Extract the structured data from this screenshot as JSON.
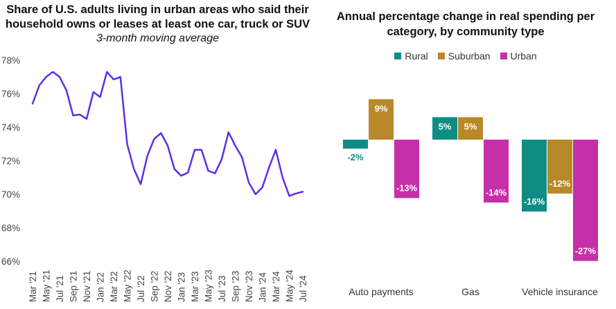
{
  "chart_data": [
    {
      "type": "line",
      "title_line1": "Share of U.S. adults living in urban areas who said their",
      "title_line2": "household owns or leases at least one car, truck or SUV",
      "subtitle": "3-month moving average",
      "xlabel": "",
      "ylabel": "",
      "ylim": [
        66,
        78
      ],
      "yticks": [
        "78%",
        "76%",
        "74%",
        "72%",
        "70%",
        "68%",
        "66%"
      ],
      "ytick_values": [
        78,
        76,
        74,
        72,
        70,
        68,
        66
      ],
      "xticks": [
        "Mar '21",
        "May '21",
        "Jul '21",
        "Sep '21",
        "Nov '21",
        "Jan '22",
        "Mar '22",
        "May '22",
        "Jul '22",
        "Sep '22",
        "Nov '22",
        "Jan '23",
        "Mar '23",
        "May '23",
        "Jul '23",
        "Sep '23",
        "Nov '23",
        "Jan '24",
        "Mar '24",
        "May '24",
        "Jul '24"
      ],
      "x": [
        "Mar '21",
        "Apr '21",
        "May '21",
        "Jun '21",
        "Jul '21",
        "Aug '21",
        "Sep '21",
        "Oct '21",
        "Nov '21",
        "Dec '21",
        "Jan '22",
        "Feb '22",
        "Mar '22",
        "Apr '22",
        "May '22",
        "Jun '22",
        "Jul '22",
        "Aug '22",
        "Sep '22",
        "Oct '22",
        "Nov '22",
        "Dec '22",
        "Jan '23",
        "Feb '23",
        "Mar '23",
        "Apr '23",
        "May '23",
        "Jun '23",
        "Jul '23",
        "Aug '23",
        "Sep '23",
        "Oct '23",
        "Nov '23",
        "Dec '23",
        "Jan '24",
        "Feb '24",
        "Mar '24",
        "Apr '24",
        "May '24",
        "Jun '24",
        "Jul '24"
      ],
      "series": [
        {
          "values": [
            75.4,
            76.5,
            77.0,
            77.3,
            77.0,
            76.2,
            74.7,
            74.75,
            74.5,
            76.1,
            75.8,
            77.3,
            76.85,
            77.0,
            73.0,
            71.5,
            70.6,
            72.3,
            73.3,
            73.65,
            72.9,
            71.5,
            71.1,
            71.3,
            72.65,
            72.65,
            71.4,
            71.25,
            72.1,
            73.7,
            72.9,
            72.2,
            70.7,
            70.0,
            70.4,
            71.6,
            72.65,
            71.0,
            69.9,
            70.05,
            70.15
          ],
          "color": "#5b2ee6"
        }
      ]
    },
    {
      "type": "bar",
      "title_line1": "Annual percentage change in real spending per",
      "title_line2": "category, by community type",
      "categories": [
        "Auto payments",
        "Gas",
        "Vehicle insurance"
      ],
      "series": [
        {
          "name": "Rural",
          "color": "#0f8c84",
          "values": [
            -2,
            5,
            -16
          ],
          "labels": [
            "-2%",
            "5%",
            "-16%"
          ]
        },
        {
          "name": "Suburban",
          "color": "#b8892a",
          "values": [
            9,
            5,
            -12
          ],
          "labels": [
            "9%",
            "5%",
            "-12%"
          ]
        },
        {
          "name": "Urban",
          "color": "#c52fa8",
          "values": [
            -13,
            -14,
            -27
          ],
          "labels": [
            "-13%",
            "-14%",
            "-27%"
          ]
        }
      ]
    }
  ]
}
